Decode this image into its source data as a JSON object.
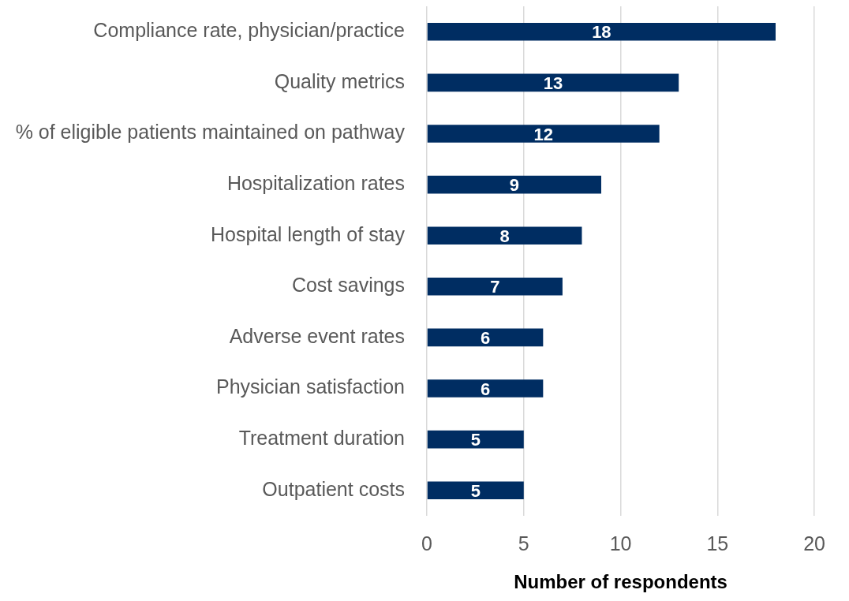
{
  "chart_data": {
    "type": "bar",
    "orientation": "horizontal",
    "categories": [
      "Compliance rate, physician/practice",
      "Quality metrics",
      "% of eligible patients maintained on pathway",
      "Hospitalization rates",
      "Hospital length of stay",
      "Cost savings",
      "Adverse event rates",
      "Physician satisfaction",
      "Treatment duration",
      "Outpatient costs"
    ],
    "values": [
      18,
      13,
      12,
      9,
      8,
      7,
      6,
      6,
      5,
      5
    ],
    "color": "#002d62",
    "xlabel": "Number of respondents",
    "xlim": [
      0,
      20
    ],
    "xticks": [
      0,
      5,
      10,
      15,
      20
    ],
    "grid": "x",
    "data_labels": true
  }
}
